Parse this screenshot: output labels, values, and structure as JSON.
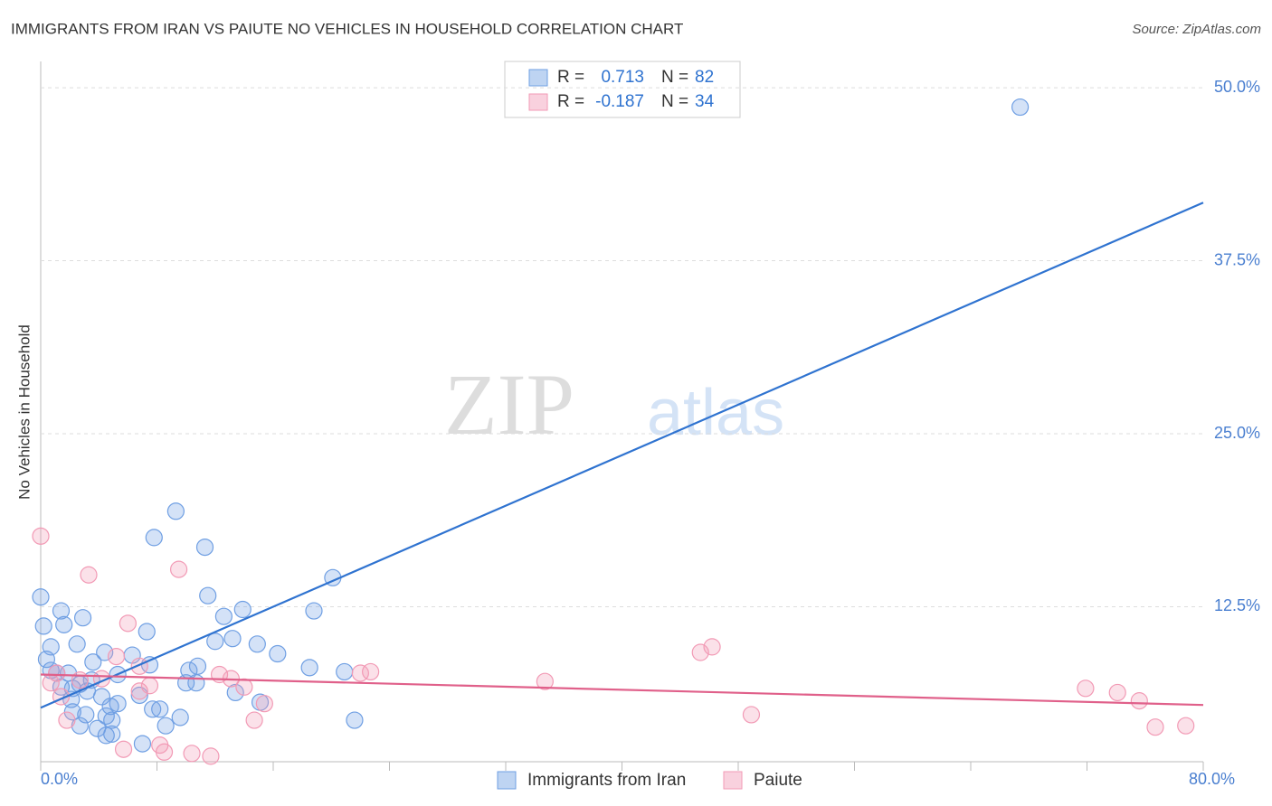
{
  "chart_data": {
    "type": "scatter",
    "title": "IMMIGRANTS FROM IRAN VS PAIUTE NO VEHICLES IN HOUSEHOLD CORRELATION CHART",
    "source": "Source: ZipAtlas.com",
    "y_label": "No Vehicles in Household",
    "watermark": [
      "ZIP",
      "atlas"
    ],
    "legend_labels": {
      "r": "R =",
      "n": "N ="
    },
    "xlim": [
      0,
      80
    ],
    "ylim": [
      1.3,
      51.9
    ],
    "xticks": [
      {
        "value": 0,
        "label": "0.0%"
      },
      {
        "value": 80,
        "label": "80.0%"
      }
    ],
    "x_minor_ticks": [
      8,
      16,
      24,
      32,
      40,
      48,
      56,
      64,
      72
    ],
    "yticks": [
      {
        "value": 12.5,
        "label": "12.5%"
      },
      {
        "value": 25,
        "label": "25.0%"
      },
      {
        "value": 37.5,
        "label": "37.5%"
      },
      {
        "value": 50,
        "label": "50.0%"
      }
    ],
    "grid": true,
    "series": [
      {
        "name": "Immigrants from Iran",
        "color": "#6f9fe3",
        "line_color": "#2f73d0",
        "r": 0.713,
        "n": 82,
        "trend": [
          5.2,
          41.7
        ],
        "x": [
          67.4,
          9.3,
          7.8,
          11.3,
          20.1,
          11.5,
          13.9,
          12.6,
          18.8,
          1.4,
          0,
          2.9,
          1.6,
          0.2,
          7.3,
          13.2,
          12.0,
          14.9,
          0.7,
          2.5,
          4.4,
          6.3,
          16.3,
          0.4,
          3.6,
          7.5,
          18.5,
          10.8,
          10.2,
          20.9,
          0.7,
          1.1,
          1.9,
          5.3,
          3.5,
          2.7,
          10.0,
          10.7,
          1.4,
          2.2,
          3.2,
          4.2,
          13.4,
          6.8,
          15.1,
          2.1,
          5.3,
          4.8,
          7.7,
          8.2,
          2.2,
          3.1,
          4.5,
          4.9,
          9.6,
          21.6,
          8.6,
          2.7,
          3.9,
          4.5,
          4.9,
          7.0
        ],
        "y": [
          48.6,
          19.4,
          17.5,
          16.8,
          14.6,
          13.3,
          12.3,
          11.8,
          12.2,
          12.2,
          13.2,
          11.7,
          11.2,
          11.1,
          10.7,
          10.2,
          10.0,
          9.8,
          9.6,
          9.8,
          9.2,
          9.0,
          9.1,
          8.7,
          8.5,
          8.3,
          8.1,
          8.2,
          7.9,
          7.8,
          7.9,
          7.7,
          7.7,
          7.6,
          7.2,
          6.9,
          7.0,
          7.0,
          6.7,
          6.6,
          6.4,
          6.0,
          6.3,
          6.1,
          5.6,
          5.8,
          5.5,
          5.3,
          5.1,
          5.1,
          4.9,
          4.7,
          4.6,
          4.3,
          4.5,
          4.3,
          3.9,
          3.9,
          3.7,
          3.2,
          3.3,
          2.6
        ]
      },
      {
        "name": "Paiute",
        "color": "#f29ab5",
        "line_color": "#e0608a",
        "r": -0.187,
        "n": 34,
        "trend": [
          7.6,
          5.4
        ],
        "x": [
          0,
          3.3,
          9.5,
          6.0,
          46.2,
          45.4,
          5.2,
          6.8,
          12.3,
          13.1,
          22.0,
          22.7,
          0.7,
          2.7,
          1.1,
          4.2,
          7.5,
          14.0,
          34.7,
          71.9,
          74.1,
          75.6,
          6.8,
          1.4,
          15.4,
          48.9,
          1.8,
          14.7,
          76.7,
          78.8,
          5.7,
          8.2,
          8.5,
          10.4,
          11.7
        ],
        "y": [
          17.6,
          14.8,
          15.2,
          11.3,
          9.6,
          9.2,
          8.9,
          8.2,
          7.6,
          7.3,
          7.7,
          7.8,
          7.0,
          7.2,
          7.7,
          7.3,
          6.8,
          6.7,
          7.1,
          6.6,
          6.3,
          5.7,
          6.4,
          6.0,
          5.5,
          4.7,
          4.3,
          4.3,
          3.8,
          3.9,
          2.2,
          2.5,
          2.0,
          1.9,
          1.7
        ]
      }
    ]
  }
}
